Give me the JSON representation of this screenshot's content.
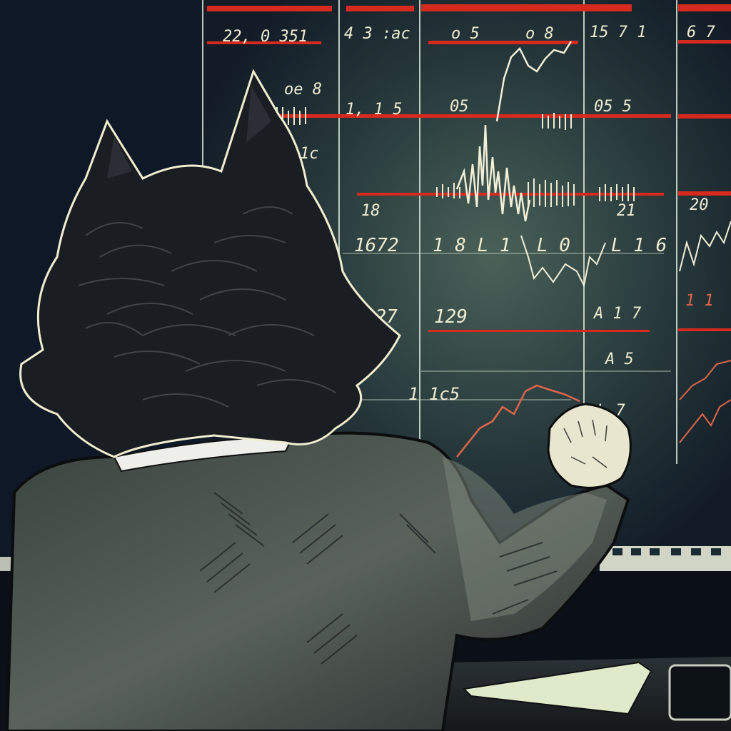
{
  "scene": {
    "description_tag": "illustration",
    "palette": {
      "background": "#0c1422",
      "board": "#1b2a33",
      "board_glow": "#3e5550",
      "grid_line": "#d9e6d3",
      "ticker_red": "#d62a1e",
      "chart_line": "#f2efd8",
      "chart_red": "#e0654a",
      "fur": "#1a1d22",
      "fur_highlight": "#f0edd0",
      "suit": "#4d554f",
      "suit_shadow": "#2a302f",
      "collar": "#eeeeea",
      "desk": "#1e2327",
      "paper": "#dfeacb"
    }
  },
  "board": {
    "labels": [
      {
        "id": "label-1",
        "text": "22, 0 351"
      },
      {
        "id": "label-2",
        "text": "4 3 :ac"
      },
      {
        "id": "label-3",
        "text": "o 5"
      },
      {
        "id": "label-4",
        "text": "o 8"
      },
      {
        "id": "label-5",
        "text": "15 7 1"
      },
      {
        "id": "label-6",
        "text": "6 7"
      },
      {
        "id": "label-7",
        "text": "oe 8"
      },
      {
        "id": "label-8",
        "text": "1, 1 5"
      },
      {
        "id": "label-9",
        "text": "05"
      },
      {
        "id": "label-10",
        "text": "05 5"
      },
      {
        "id": "label-11",
        "text": "1c"
      },
      {
        "id": "label-12",
        "text": "18"
      },
      {
        "id": "label-13",
        "text": "21"
      },
      {
        "id": "label-14",
        "text": "20"
      },
      {
        "id": "label-15",
        "text": "1672"
      },
      {
        "id": "label-16",
        "text": "1 8 L 1"
      },
      {
        "id": "label-17",
        "text": "L 0"
      },
      {
        "id": "label-18",
        "text": "L 1 6"
      },
      {
        "id": "label-19",
        "text": "127"
      },
      {
        "id": "label-20",
        "text": "129"
      },
      {
        "id": "label-21",
        "text": "A 1 7"
      },
      {
        "id": "label-22",
        "text": "A 5"
      },
      {
        "id": "label-23",
        "text": "1 1c5"
      },
      {
        "id": "label-24",
        "text": "1 1"
      },
      {
        "id": "label-25",
        "text": "L 7"
      }
    ]
  }
}
